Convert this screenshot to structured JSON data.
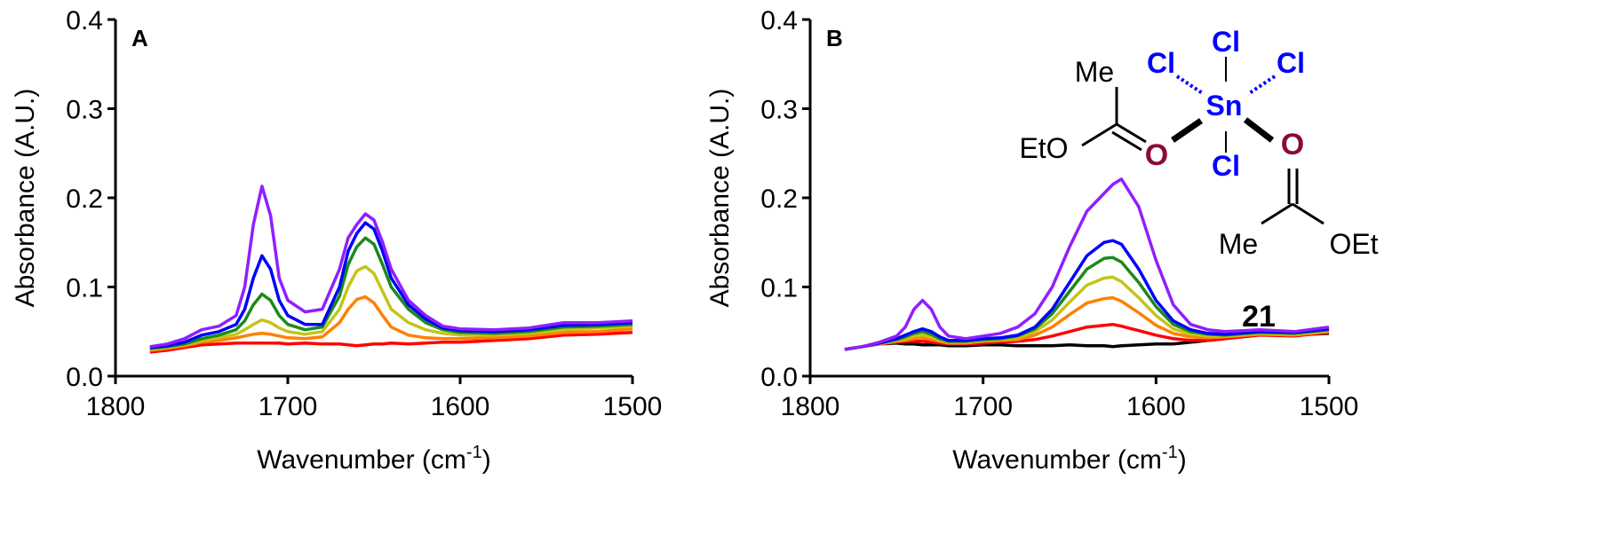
{
  "chart_data": [
    {
      "type": "line",
      "panel_label": "A",
      "xlabel": "Wavenumber (cm-1)",
      "ylabel": "Absorbance (A.U.)",
      "xlim": [
        1800,
        1500
      ],
      "ylim": [
        0,
        0.4
      ],
      "x_reversed": true,
      "xticks": [
        1800,
        1700,
        1600,
        1500
      ],
      "xtick_labels": [
        "1800",
        "1700",
        "1600",
        "1500"
      ],
      "yticks": [
        0,
        0.1,
        0.2,
        0.3,
        0.4
      ],
      "ytick_labels": [
        "0.0",
        "0.1",
        "0.2",
        "0.3",
        "0.4"
      ],
      "grid": false,
      "x": [
        1780,
        1770,
        1760,
        1750,
        1740,
        1730,
        1725,
        1720,
        1715,
        1710,
        1705,
        1700,
        1690,
        1680,
        1670,
        1665,
        1660,
        1655,
        1650,
        1645,
        1640,
        1630,
        1620,
        1610,
        1600,
        1580,
        1560,
        1540,
        1520,
        1500
      ],
      "series": [
        {
          "color": "#ff0000",
          "values": [
            0.027,
            0.029,
            0.032,
            0.035,
            0.036,
            0.037,
            0.037,
            0.037,
            0.037,
            0.037,
            0.037,
            0.036,
            0.037,
            0.036,
            0.036,
            0.035,
            0.034,
            0.035,
            0.036,
            0.036,
            0.037,
            0.036,
            0.037,
            0.038,
            0.038,
            0.04,
            0.042,
            0.046,
            0.047,
            0.049
          ]
        },
        {
          "color": "#ff8000",
          "values": [
            0.029,
            0.031,
            0.034,
            0.038,
            0.04,
            0.043,
            0.045,
            0.047,
            0.048,
            0.047,
            0.045,
            0.043,
            0.042,
            0.044,
            0.06,
            0.075,
            0.086,
            0.089,
            0.082,
            0.068,
            0.055,
            0.046,
            0.043,
            0.042,
            0.042,
            0.043,
            0.045,
            0.049,
            0.05,
            0.053
          ]
        },
        {
          "color": "#c4c41a",
          "values": [
            0.03,
            0.032,
            0.035,
            0.04,
            0.043,
            0.047,
            0.052,
            0.058,
            0.063,
            0.06,
            0.054,
            0.05,
            0.047,
            0.05,
            0.075,
            0.1,
            0.118,
            0.123,
            0.115,
            0.095,
            0.075,
            0.06,
            0.052,
            0.048,
            0.046,
            0.046,
            0.048,
            0.052,
            0.054,
            0.056
          ]
        },
        {
          "color": "#1a8a1a",
          "values": [
            0.031,
            0.033,
            0.036,
            0.042,
            0.046,
            0.052,
            0.062,
            0.08,
            0.092,
            0.085,
            0.068,
            0.058,
            0.052,
            0.055,
            0.09,
            0.125,
            0.145,
            0.155,
            0.148,
            0.125,
            0.1,
            0.075,
            0.06,
            0.052,
            0.049,
            0.048,
            0.05,
            0.055,
            0.056,
            0.058
          ]
        },
        {
          "color": "#0000ff",
          "values": [
            0.032,
            0.034,
            0.038,
            0.046,
            0.05,
            0.058,
            0.075,
            0.11,
            0.135,
            0.12,
            0.085,
            0.068,
            0.058,
            0.058,
            0.1,
            0.14,
            0.16,
            0.172,
            0.165,
            0.14,
            0.11,
            0.08,
            0.064,
            0.054,
            0.051,
            0.05,
            0.052,
            0.057,
            0.058,
            0.06
          ]
        },
        {
          "color": "#8f1fff",
          "values": [
            0.033,
            0.036,
            0.042,
            0.052,
            0.056,
            0.068,
            0.1,
            0.17,
            0.213,
            0.18,
            0.11,
            0.085,
            0.072,
            0.075,
            0.12,
            0.155,
            0.17,
            0.182,
            0.175,
            0.15,
            0.12,
            0.085,
            0.068,
            0.056,
            0.053,
            0.052,
            0.054,
            0.06,
            0.06,
            0.062
          ]
        }
      ]
    },
    {
      "type": "line",
      "panel_label": "B",
      "xlabel": "Wavenumber (cm-1)",
      "ylabel": "Absorbance (A.U.)",
      "xlim": [
        1800,
        1500
      ],
      "ylim": [
        0,
        0.4
      ],
      "x_reversed": true,
      "xticks": [
        1800,
        1700,
        1600,
        1500
      ],
      "xtick_labels": [
        "1800",
        "1700",
        "1600",
        "1500"
      ],
      "yticks": [
        0,
        0.1,
        0.2,
        0.3,
        0.4
      ],
      "ytick_labels": [
        "0.0",
        "0.1",
        "0.2",
        "0.3",
        "0.4"
      ],
      "grid": false,
      "x": [
        1780,
        1770,
        1760,
        1750,
        1745,
        1740,
        1735,
        1730,
        1725,
        1720,
        1710,
        1700,
        1690,
        1680,
        1670,
        1660,
        1650,
        1640,
        1630,
        1625,
        1620,
        1610,
        1600,
        1590,
        1580,
        1570,
        1560,
        1540,
        1520,
        1500
      ],
      "series": [
        {
          "color": "#000000",
          "values": [
            0.03,
            0.033,
            0.036,
            0.037,
            0.036,
            0.036,
            0.035,
            0.035,
            0.035,
            0.034,
            0.034,
            0.035,
            0.035,
            0.034,
            0.034,
            0.034,
            0.035,
            0.034,
            0.034,
            0.033,
            0.034,
            0.035,
            0.036,
            0.036,
            0.038,
            0.04,
            0.042,
            0.047,
            0.046,
            0.048
          ]
        },
        {
          "color": "#ff0000",
          "values": [
            0.03,
            0.033,
            0.036,
            0.038,
            0.039,
            0.039,
            0.039,
            0.038,
            0.037,
            0.036,
            0.036,
            0.037,
            0.038,
            0.039,
            0.041,
            0.045,
            0.05,
            0.055,
            0.057,
            0.058,
            0.056,
            0.051,
            0.046,
            0.042,
            0.04,
            0.04,
            0.042,
            0.046,
            0.045,
            0.049
          ]
        },
        {
          "color": "#ff8000",
          "values": [
            0.03,
            0.033,
            0.036,
            0.039,
            0.04,
            0.042,
            0.043,
            0.041,
            0.039,
            0.037,
            0.037,
            0.039,
            0.04,
            0.041,
            0.046,
            0.055,
            0.069,
            0.082,
            0.087,
            0.088,
            0.084,
            0.071,
            0.057,
            0.048,
            0.044,
            0.043,
            0.044,
            0.047,
            0.046,
            0.05
          ]
        },
        {
          "color": "#c4c41a",
          "values": [
            0.03,
            0.033,
            0.037,
            0.04,
            0.042,
            0.045,
            0.046,
            0.044,
            0.04,
            0.038,
            0.038,
            0.04,
            0.041,
            0.043,
            0.05,
            0.063,
            0.083,
            0.102,
            0.11,
            0.111,
            0.106,
            0.088,
            0.068,
            0.053,
            0.047,
            0.045,
            0.045,
            0.048,
            0.047,
            0.051
          ]
        },
        {
          "color": "#1a8a1a",
          "values": [
            0.03,
            0.033,
            0.037,
            0.041,
            0.044,
            0.048,
            0.05,
            0.047,
            0.042,
            0.039,
            0.039,
            0.041,
            0.042,
            0.045,
            0.053,
            0.07,
            0.095,
            0.12,
            0.132,
            0.133,
            0.128,
            0.105,
            0.078,
            0.058,
            0.05,
            0.047,
            0.046,
            0.049,
            0.048,
            0.052
          ]
        },
        {
          "color": "#0000ff",
          "values": [
            0.03,
            0.033,
            0.037,
            0.042,
            0.046,
            0.05,
            0.053,
            0.05,
            0.044,
            0.04,
            0.04,
            0.042,
            0.043,
            0.046,
            0.055,
            0.075,
            0.105,
            0.135,
            0.15,
            0.152,
            0.148,
            0.12,
            0.085,
            0.062,
            0.052,
            0.048,
            0.047,
            0.05,
            0.049,
            0.053
          ]
        },
        {
          "color": "#8f1fff",
          "values": [
            0.03,
            0.033,
            0.038,
            0.045,
            0.055,
            0.075,
            0.085,
            0.075,
            0.055,
            0.045,
            0.042,
            0.045,
            0.048,
            0.055,
            0.07,
            0.1,
            0.145,
            0.185,
            0.205,
            0.215,
            0.221,
            0.19,
            0.13,
            0.08,
            0.058,
            0.052,
            0.05,
            0.052,
            0.05,
            0.055
          ]
        }
      ]
    }
  ],
  "structure": {
    "compound_number": "21",
    "metal": "Sn",
    "chloride": "Cl",
    "oxygen": "O",
    "methyl": "Me",
    "ethoxy_left": "EtO",
    "ethoxy_right": "OEt",
    "colors": {
      "metal_and_chloride": "#0000ff",
      "oxygen": "#8b0a3a"
    }
  }
}
